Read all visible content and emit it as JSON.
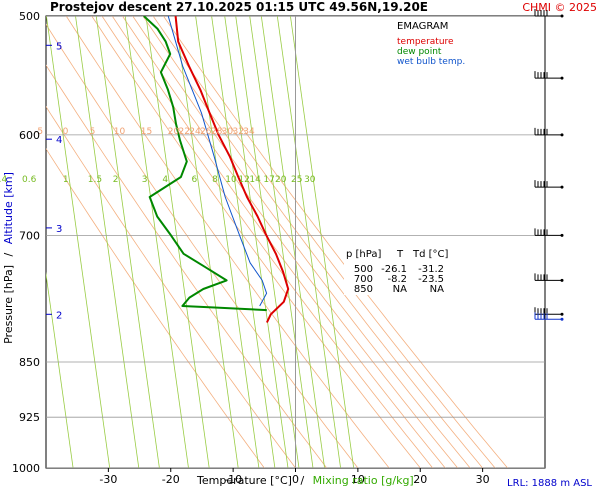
{
  "header": {
    "title": "Prostejov   descent   27.10.2025 01:15 UTC  49.56N,19.20E",
    "credit": "CHMI © 2025"
  },
  "legend": {
    "heading": "EMAGRAM",
    "temperature_label": "temperature",
    "dewpoint_label": "dew point",
    "wetbulb_label": "wet bulb temp."
  },
  "table": {
    "headers": [
      "p [hPa]",
      "T",
      "Td [°C]"
    ],
    "rows": [
      [
        "500",
        "-26.1",
        "-31.2"
      ],
      [
        "700",
        "-8.2",
        "-23.5"
      ],
      [
        "850",
        "NA",
        "NA"
      ]
    ]
  },
  "axes": {
    "ylabel_pressure": "Pressure [hPa]",
    "ylabel_sep": "/",
    "ylabel_altitude": "Altitude [km]",
    "xlabel_temp": "Temperature [°C]",
    "xlabel_sep": "/",
    "xlabel_mixing": "Mixing ratio [g/kg]",
    "lrl": "LRL: 1888 m ASL"
  },
  "colors": {
    "temperature": "#dd0000",
    "dewpoint": "#008800",
    "wetbulb": "#1155cc",
    "dry_adiabat": "#f4b080",
    "mixing_ratio": "#99cc44",
    "altitude": "#0000cc",
    "grid": "#999999",
    "credit": "#dd0000"
  },
  "chart_data": {
    "type": "line",
    "title": "Prostejov descent 27.10.2025 01:15 UTC 49.56N,19.20E",
    "xlim": [
      -40,
      40
    ],
    "xticks": [
      -30,
      -20,
      -10,
      0,
      10,
      20,
      30
    ],
    "xtick_labels": [
      "-30",
      "-20",
      "-10",
      "0",
      "10",
      "20",
      "30"
    ],
    "pressure_range": [
      1000,
      500
    ],
    "pressure_ticks": [
      500,
      600,
      700,
      850,
      925,
      1000
    ],
    "pressure_tick_labels": [
      "500",
      "600",
      "700",
      "850",
      "925",
      "1000"
    ],
    "altitude_ticks": [
      {
        "km": 2,
        "p": 790
      },
      {
        "km": 3,
        "p": 692
      },
      {
        "km": 4,
        "p": 604
      },
      {
        "km": 5,
        "p": 523
      }
    ],
    "altitude_tick_labels": [
      "2",
      "3",
      "4",
      "5"
    ],
    "dry_adiabats": [
      -5,
      0,
      5,
      10,
      15,
      20,
      22,
      24,
      26,
      28,
      30,
      32,
      34
    ],
    "dry_adiabat_labels": [
      "-5",
      "0",
      "5",
      "10",
      "15",
      "20",
      "22",
      "24",
      "26",
      "28",
      "30",
      "32",
      "34"
    ],
    "mixing_ratios": [
      0.4,
      0.6,
      1,
      1.5,
      2,
      3,
      4,
      6,
      8,
      10,
      12,
      14,
      17,
      20,
      25,
      30
    ],
    "mixing_ratio_labels": [
      "0.4",
      "0.6",
      "1",
      "1.5",
      "2",
      "3",
      "4",
      "6",
      "8",
      "10",
      "12",
      "14",
      "17",
      "20",
      "25",
      "30"
    ],
    "series": [
      {
        "name": "temperature",
        "points": [
          {
            "p": 500,
            "t": -26.1
          },
          {
            "p": 520,
            "t": -25.3
          },
          {
            "p": 540,
            "t": -23.2
          },
          {
            "p": 560,
            "t": -21.0
          },
          {
            "p": 580,
            "t": -19.2
          },
          {
            "p": 600,
            "t": -17.4
          },
          {
            "p": 620,
            "t": -15.3
          },
          {
            "p": 640,
            "t": -13.6
          },
          {
            "p": 660,
            "t": -11.9
          },
          {
            "p": 680,
            "t": -9.9
          },
          {
            "p": 700,
            "t": -8.2
          },
          {
            "p": 720,
            "t": -6.4
          },
          {
            "p": 740,
            "t": -5.0
          },
          {
            "p": 760,
            "t": -3.9
          },
          {
            "p": 775,
            "t": -4.4
          },
          {
            "p": 790,
            "t": -6.3
          },
          {
            "p": 800,
            "t": -6.8
          }
        ]
      },
      {
        "name": "dew point",
        "points": [
          {
            "p": 500,
            "t": -31.2
          },
          {
            "p": 510,
            "t": -28.8
          },
          {
            "p": 520,
            "t": -27.3
          },
          {
            "p": 530,
            "t": -26.4
          },
          {
            "p": 545,
            "t": -27.6
          },
          {
            "p": 560,
            "t": -26.2
          },
          {
            "p": 575,
            "t": -25.1
          },
          {
            "p": 590,
            "t": -24.4
          },
          {
            "p": 605,
            "t": -23.5
          },
          {
            "p": 625,
            "t": -22.1
          },
          {
            "p": 640,
            "t": -22.8
          },
          {
            "p": 660,
            "t": -27.5
          },
          {
            "p": 680,
            "t": -26.0
          },
          {
            "p": 700,
            "t": -23.5
          },
          {
            "p": 720,
            "t": -21.2
          },
          {
            "p": 735,
            "t": -17.5
          },
          {
            "p": 750,
            "t": -13.9
          },
          {
            "p": 760,
            "t": -17.5
          },
          {
            "p": 770,
            "t": -19.6
          },
          {
            "p": 780,
            "t": -20.6
          },
          {
            "p": 782,
            "t": -15.0
          },
          {
            "p": 785,
            "t": -7.0
          }
        ]
      },
      {
        "name": "wet bulb temp.",
        "points": [
          {
            "p": 500,
            "t": -27.3
          },
          {
            "p": 540,
            "t": -24.2
          },
          {
            "p": 580,
            "t": -20.5
          },
          {
            "p": 620,
            "t": -17.8
          },
          {
            "p": 660,
            "t": -15.4
          },
          {
            "p": 700,
            "t": -12.5
          },
          {
            "p": 730,
            "t": -10.4
          },
          {
            "p": 750,
            "t": -8.2
          },
          {
            "p": 765,
            "t": -7.3
          },
          {
            "p": 780,
            "t": -8.2
          }
        ]
      }
    ],
    "wind_levels": [
      500,
      550,
      600,
      650,
      700,
      750,
      790
    ],
    "wind_barbs_low": [
      790
    ]
  }
}
